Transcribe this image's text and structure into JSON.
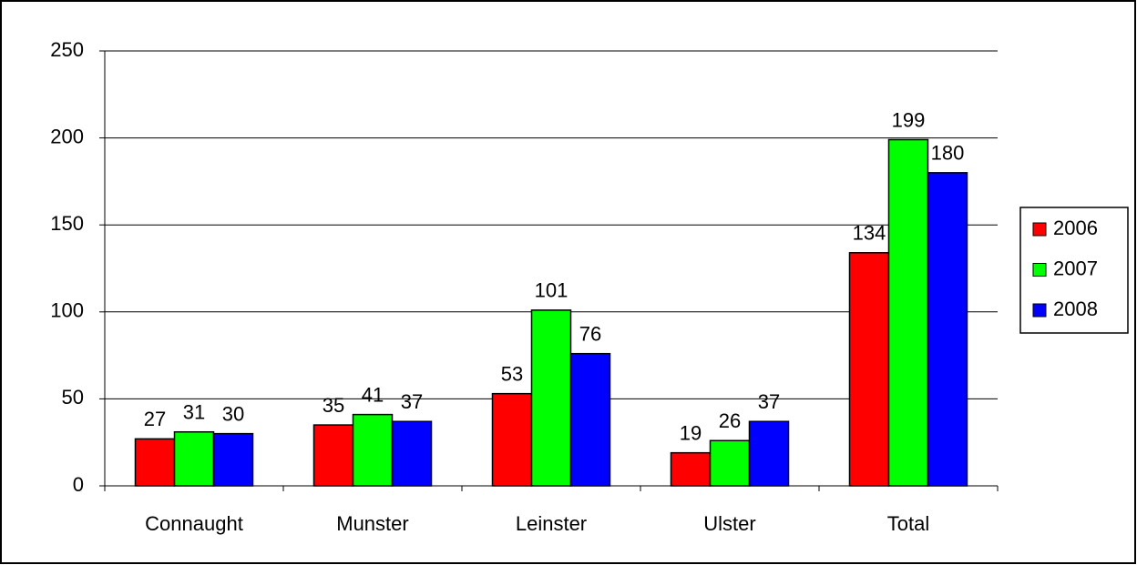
{
  "chart_data": {
    "type": "bar",
    "categories": [
      "Connaught",
      "Munster",
      "Leinster",
      "Ulster",
      "Total"
    ],
    "series": [
      {
        "name": "2006",
        "color": "#ff0000",
        "values": [
          27,
          35,
          53,
          19,
          134
        ]
      },
      {
        "name": "2007",
        "color": "#00ff00",
        "values": [
          31,
          41,
          101,
          26,
          199
        ]
      },
      {
        "name": "2008",
        "color": "#0000ff",
        "values": [
          30,
          37,
          76,
          37,
          180
        ]
      }
    ],
    "ylim": [
      0,
      250
    ],
    "yticks": [
      0,
      50,
      100,
      150,
      200,
      250
    ],
    "grid": true,
    "legend": "right"
  }
}
